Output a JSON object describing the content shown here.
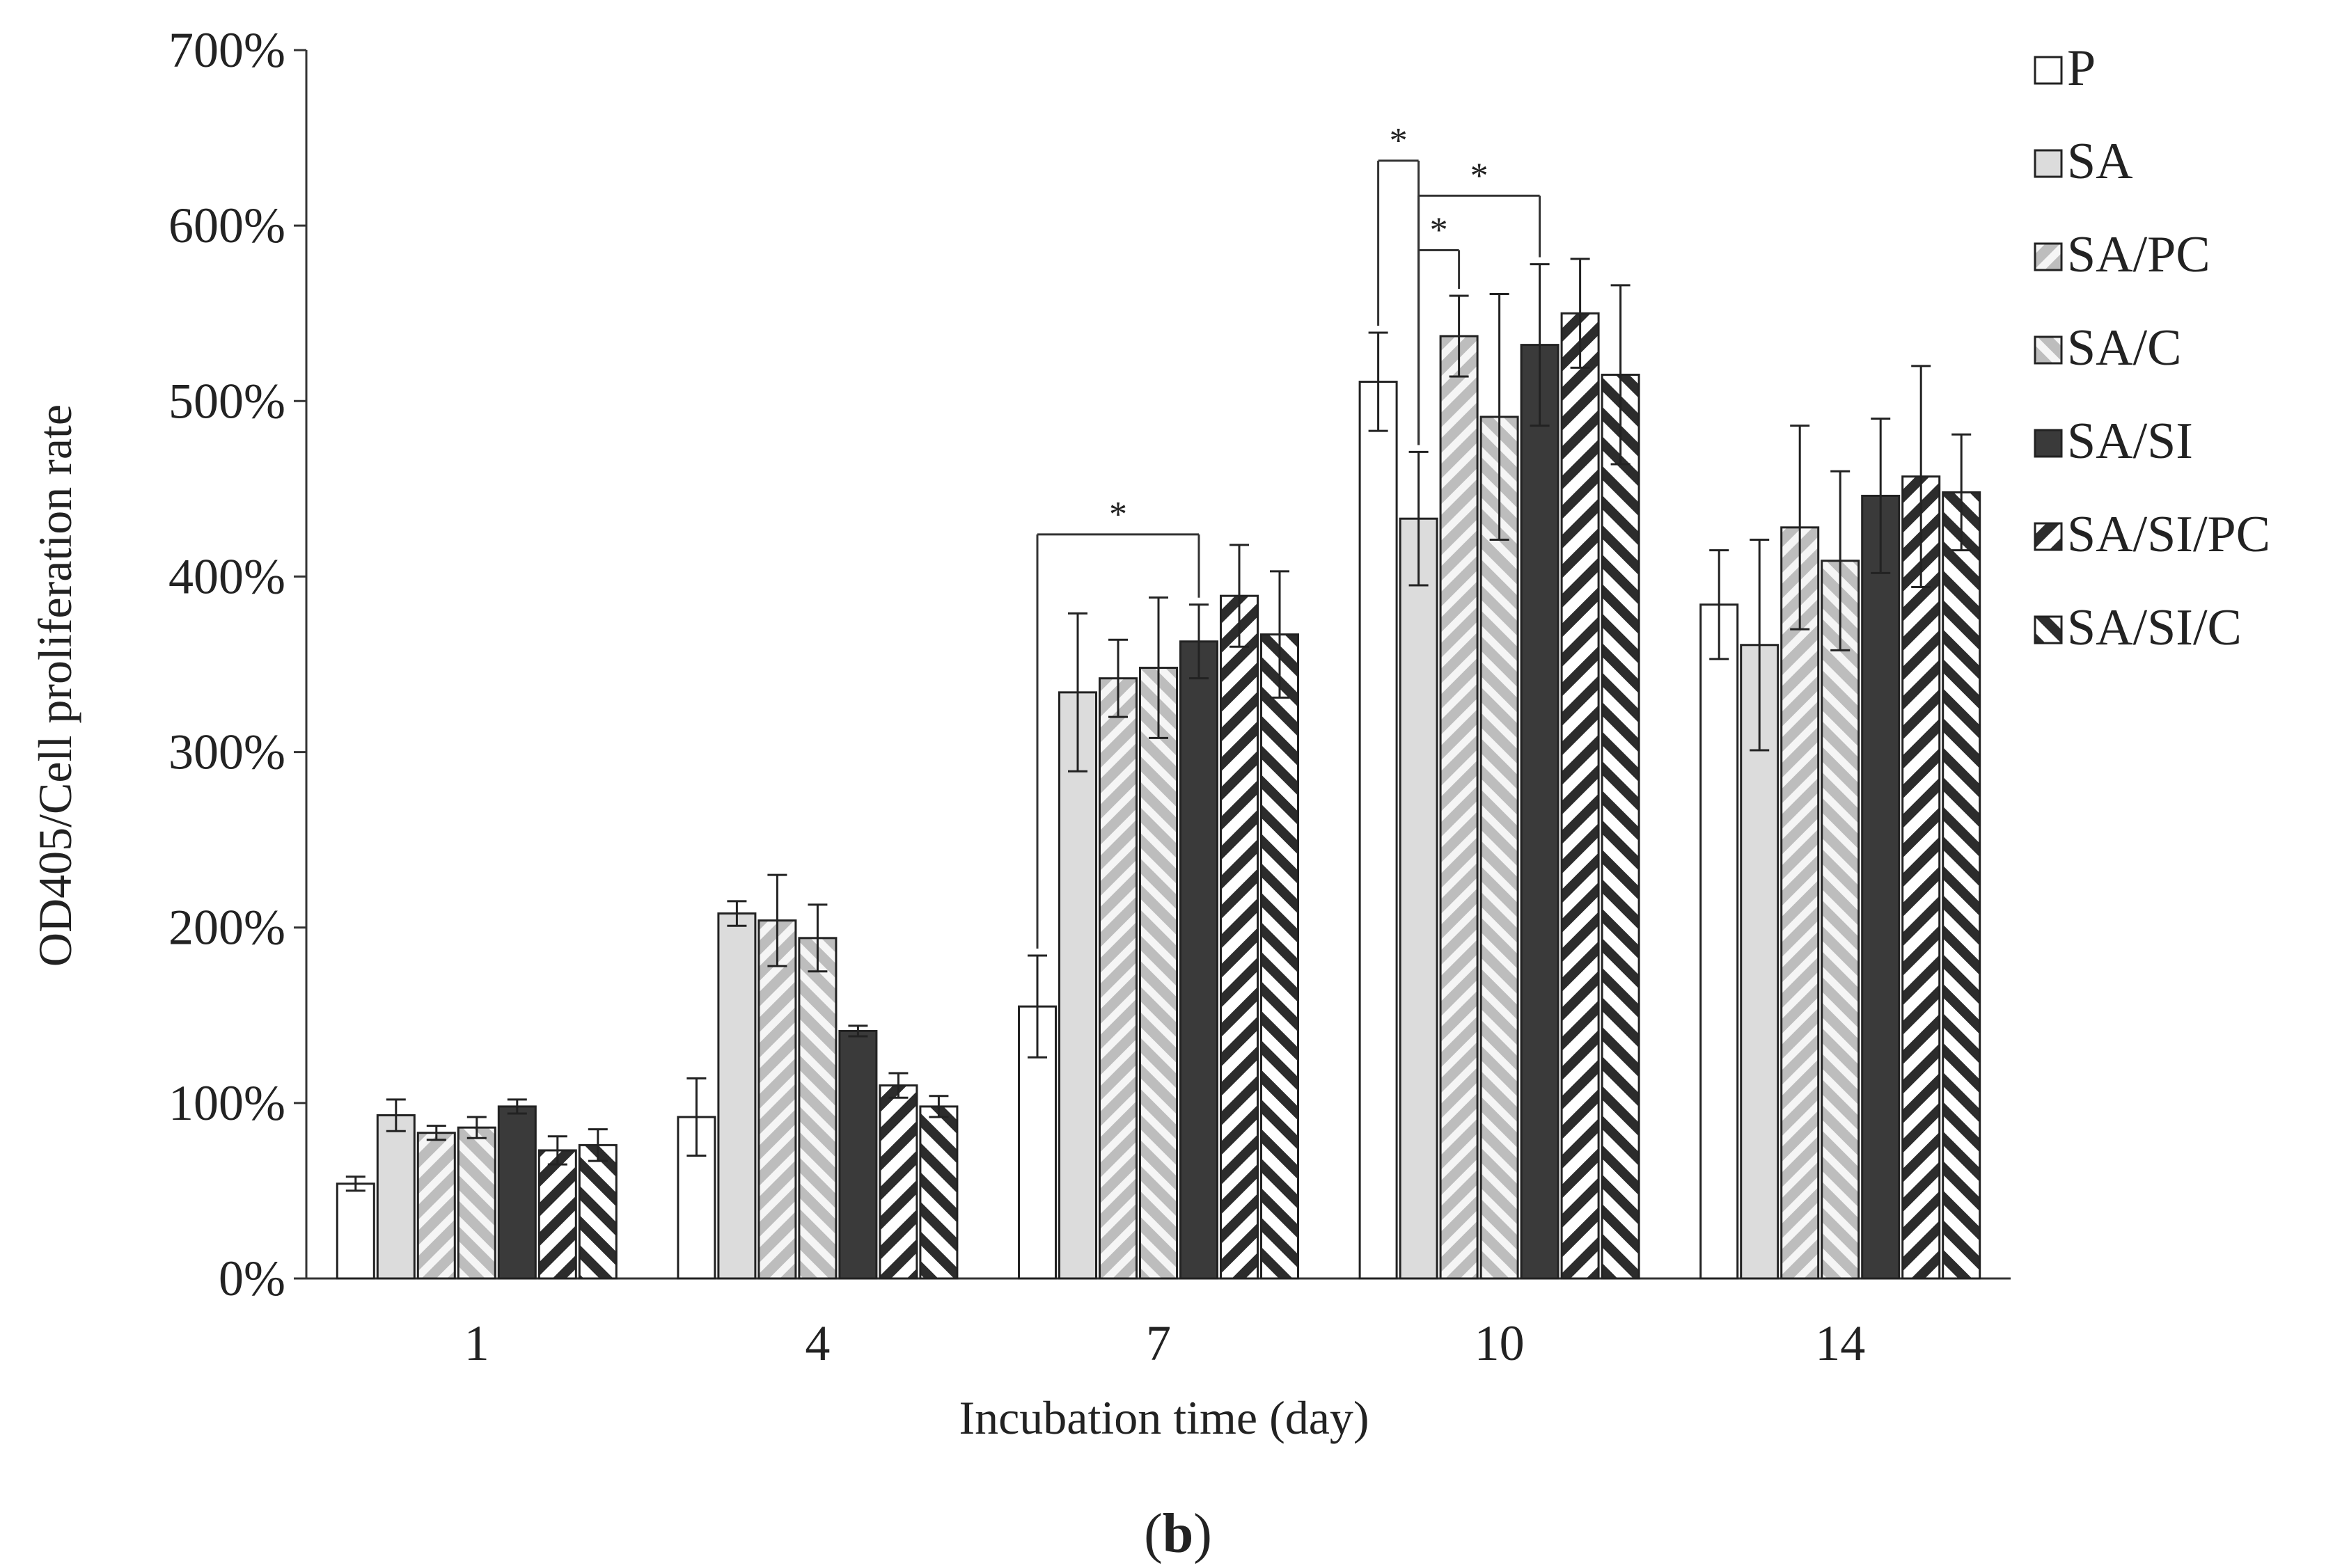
{
  "chart_data": {
    "type": "bar",
    "title": "",
    "xlabel": "Incubation time (day)",
    "ylabel": "OD405/Cell proliferation rate",
    "panel_label_parts": [
      "(",
      "b",
      ")"
    ],
    "categories": [
      "1",
      "4",
      "7",
      "10",
      "14"
    ],
    "ylim": [
      0,
      700
    ],
    "yticks": [
      0,
      100,
      200,
      300,
      400,
      500,
      600,
      700
    ],
    "ytick_labels": [
      "0%",
      "100%",
      "200%",
      "300%",
      "400%",
      "500%",
      "600%",
      "700%"
    ],
    "legend_position": "top-right",
    "series": [
      {
        "name": "P",
        "pattern": "white",
        "values": [
          54,
          92,
          155,
          511,
          384
        ],
        "errors": [
          4,
          22,
          29,
          28,
          31
        ]
      },
      {
        "name": "SA",
        "pattern": "lightgray",
        "values": [
          93,
          208,
          334,
          433,
          361
        ],
        "errors": [
          9,
          7,
          45,
          38,
          60
        ]
      },
      {
        "name": "SA/PC",
        "pattern": "diag-light-fwd",
        "values": [
          83,
          204,
          342,
          537,
          428
        ],
        "errors": [
          4,
          26,
          22,
          23,
          58
        ]
      },
      {
        "name": "SA/C",
        "pattern": "diag-light-back",
        "values": [
          86,
          194,
          348,
          491,
          409
        ],
        "errors": [
          6,
          19,
          40,
          70,
          51
        ]
      },
      {
        "name": "SA/SI",
        "pattern": "dark",
        "values": [
          98,
          141,
          363,
          532,
          446
        ],
        "errors": [
          4,
          3,
          21,
          46,
          44
        ]
      },
      {
        "name": "SA/SI/PC",
        "pattern": "diag-dark-fwd",
        "values": [
          73,
          110,
          389,
          550,
          457
        ],
        "errors": [
          8,
          7,
          29,
          31,
          63
        ]
      },
      {
        "name": "SA/SI/C",
        "pattern": "diag-dark-back",
        "values": [
          76,
          98,
          367,
          515,
          448
        ],
        "errors": [
          9,
          6,
          36,
          51,
          33
        ]
      }
    ],
    "significance": [
      {
        "category": "7",
        "from_series": "P",
        "to_series": "SA/SI",
        "level": 424,
        "label": "*"
      },
      {
        "category": "10",
        "from_series": "P",
        "to_series": "SA",
        "level": 637,
        "label": "*"
      },
      {
        "category": "10",
        "from_series": "SA",
        "to_series": "SA/SI",
        "level": 617,
        "label": "*"
      },
      {
        "category": "10",
        "from_series": "SA",
        "to_series": "SA/PC",
        "level": 586,
        "label": "*"
      }
    ]
  },
  "colors": {
    "axis": "#333333",
    "bar_outline": "#222222",
    "light_fill": "#dcdcdc",
    "dark_fill": "#3a3a3a",
    "white_fill": "#ffffff"
  }
}
